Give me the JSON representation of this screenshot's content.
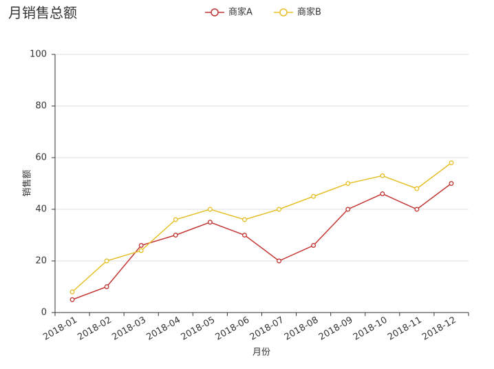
{
  "chart_data": {
    "type": "line",
    "title": "月销售总额",
    "x_label": "月份",
    "y_label": "销售额",
    "categories": [
      "2018-01",
      "2018-02",
      "2018-03",
      "2018-04",
      "2018-05",
      "2018-06",
      "2018-07",
      "2018-08",
      "2018-09",
      "2018-10",
      "2018-11",
      "2018-12"
    ],
    "series": [
      {
        "name": "商家A",
        "color": "#c23531",
        "values": [
          5,
          10,
          26,
          30,
          35,
          30,
          20,
          26,
          40,
          46,
          40,
          50
        ]
      },
      {
        "name": "商家B",
        "color": "#e6bf26",
        "values": [
          8,
          20,
          24,
          36,
          40,
          36,
          40,
          45,
          50,
          53,
          48,
          58
        ]
      }
    ],
    "ylim": [
      0,
      100
    ],
    "yticks": [
      0,
      20,
      40,
      60,
      80,
      100
    ],
    "grid": true
  }
}
